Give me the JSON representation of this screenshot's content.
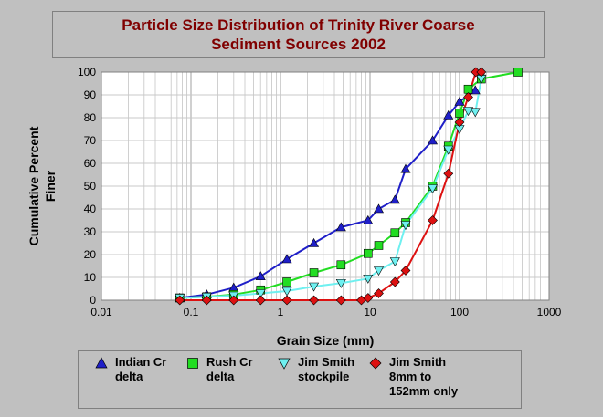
{
  "chart_data": {
    "type": "scatter",
    "title_line1": "Particle Size Distribution of Trinity River Coarse",
    "title_line2": "Sediment Sources 2002",
    "xlabel": "Grain Size (mm)",
    "ylabel_line1": "Cumulative Percent",
    "ylabel_line2": "Finer",
    "xscale": "log",
    "xlim": [
      0.01,
      1000
    ],
    "ylim": [
      0,
      100
    ],
    "x_ticks": [
      "0.01",
      "0.1",
      "1",
      "10",
      "100",
      "1000"
    ],
    "y_ticks": [
      "0",
      "10",
      "20",
      "30",
      "40",
      "50",
      "60",
      "70",
      "80",
      "90",
      "100"
    ],
    "grid": true,
    "legend_position": "bottom",
    "series": [
      {
        "name_line1": "Indian Cr",
        "name_line2": "delta",
        "marker": "triangle-up",
        "color": "#1f1fc8",
        "x": [
          0.075,
          0.15,
          0.3,
          0.6,
          1.18,
          2.36,
          4.75,
          9.5,
          12.5,
          19,
          25,
          50,
          75,
          100,
          150
        ],
        "y": [
          1,
          2.5,
          5.5,
          10.5,
          18,
          25,
          32,
          35,
          40,
          44,
          57.5,
          70,
          81,
          87,
          92
        ]
      },
      {
        "name_line1": "Rush Cr",
        "name_line2": "delta",
        "marker": "square",
        "color": "#22dd22",
        "x": [
          0.075,
          0.15,
          0.3,
          0.6,
          1.18,
          2.36,
          4.75,
          9.5,
          12.5,
          19,
          25,
          50,
          75,
          100,
          125,
          175,
          450
        ],
        "y": [
          1,
          1.5,
          2.5,
          4.5,
          8,
          12,
          15.5,
          20.5,
          24,
          29.5,
          34,
          50,
          67.5,
          82,
          92.5,
          97,
          100
        ]
      },
      {
        "name_line1": "Jim Smith",
        "name_line2": "stockpile",
        "marker": "triangle-down",
        "color": "#6ff0f0",
        "x": [
          0.075,
          0.15,
          0.3,
          0.6,
          1.18,
          2.36,
          4.75,
          9.5,
          12.5,
          19,
          25,
          50,
          75,
          100,
          125,
          150,
          175
        ],
        "y": [
          1,
          1.5,
          2,
          3,
          4,
          6,
          7.5,
          9.5,
          13,
          17,
          33,
          49,
          66,
          75,
          83,
          82.5,
          97
        ]
      },
      {
        "name_line1": "Jim Smith",
        "name_line2": "8mm to",
        "name_line3": "152mm only",
        "marker": "diamond",
        "color": "#dd1111",
        "x": [
          0.075,
          0.15,
          0.3,
          0.6,
          1.18,
          2.36,
          4.75,
          8,
          9.5,
          12.5,
          19,
          25,
          50,
          75,
          100,
          125,
          152,
          175
        ],
        "y": [
          0,
          0,
          0,
          0,
          0,
          0,
          0,
          0,
          1,
          3,
          8,
          13,
          35,
          55.5,
          78,
          89,
          100,
          100
        ]
      }
    ]
  }
}
